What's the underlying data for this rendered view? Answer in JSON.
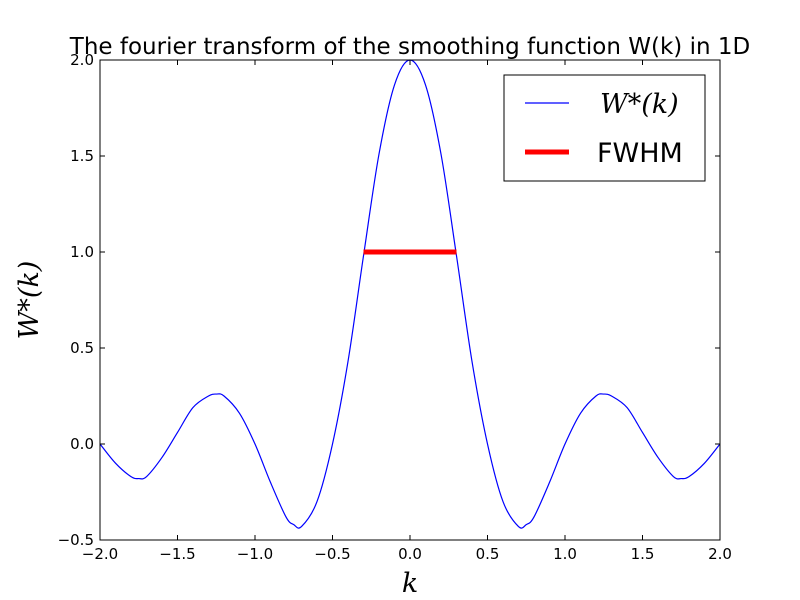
{
  "chart_data": {
    "type": "line",
    "title": "The fourier transform of the smoothing function W(k) in 1D",
    "xlabel": "k",
    "ylabel": "W*(k)",
    "xlim": [
      -2.0,
      2.0
    ],
    "ylim": [
      -0.5,
      2.0
    ],
    "x_ticks": [
      -2.0,
      -1.5,
      -1.0,
      -0.5,
      0.0,
      0.5,
      1.0,
      1.5,
      2.0
    ],
    "x_tick_labels": [
      "−2.0",
      "−1.5",
      "−1.0",
      "−0.5",
      "0.0",
      "0.5",
      "1.0",
      "1.5",
      "2.0"
    ],
    "y_ticks": [
      -0.5,
      0.0,
      0.5,
      1.0,
      1.5,
      2.0
    ],
    "y_tick_labels": [
      "−0.5",
      "0.0",
      "0.5",
      "1.0",
      "1.5",
      "2.0"
    ],
    "grid": false,
    "legend_position": "top-right",
    "series": [
      {
        "name": "W*(k)",
        "color": "#0000ff",
        "style": "solid",
        "x": [
          -2.0,
          -1.9,
          -1.8,
          -1.75,
          -1.7,
          -1.6,
          -1.5,
          -1.4,
          -1.3,
          -1.25,
          -1.2,
          -1.1,
          -1.0,
          -0.9,
          -0.8,
          -0.75,
          -0.7,
          -0.6,
          -0.5,
          -0.4,
          -0.3,
          -0.2,
          -0.1,
          0.0,
          0.1,
          0.2,
          0.3,
          0.4,
          0.5,
          0.6,
          0.7,
          0.75,
          0.8,
          0.9,
          1.0,
          1.1,
          1.2,
          1.25,
          1.3,
          1.4,
          1.5,
          1.6,
          1.7,
          1.75,
          1.8,
          1.9,
          2.0
        ],
        "y": [
          0.0,
          -0.1,
          -0.17,
          -0.18,
          -0.17,
          -0.07,
          0.06,
          0.19,
          0.25,
          0.26,
          0.25,
          0.16,
          0.0,
          -0.2,
          -0.38,
          -0.42,
          -0.43,
          -0.3,
          0.0,
          0.43,
          0.98,
          1.51,
          1.87,
          2.0,
          1.87,
          1.51,
          0.98,
          0.43,
          0.0,
          -0.3,
          -0.43,
          -0.42,
          -0.38,
          -0.2,
          0.0,
          0.16,
          0.25,
          0.26,
          0.25,
          0.19,
          0.06,
          -0.07,
          -0.17,
          -0.18,
          -0.17,
          -0.1,
          0.0
        ]
      },
      {
        "name": "FWHM",
        "color": "#ff0000",
        "style": "thick",
        "x": [
          -0.3,
          0.3
        ],
        "y": [
          1.0,
          1.0
        ]
      }
    ]
  }
}
